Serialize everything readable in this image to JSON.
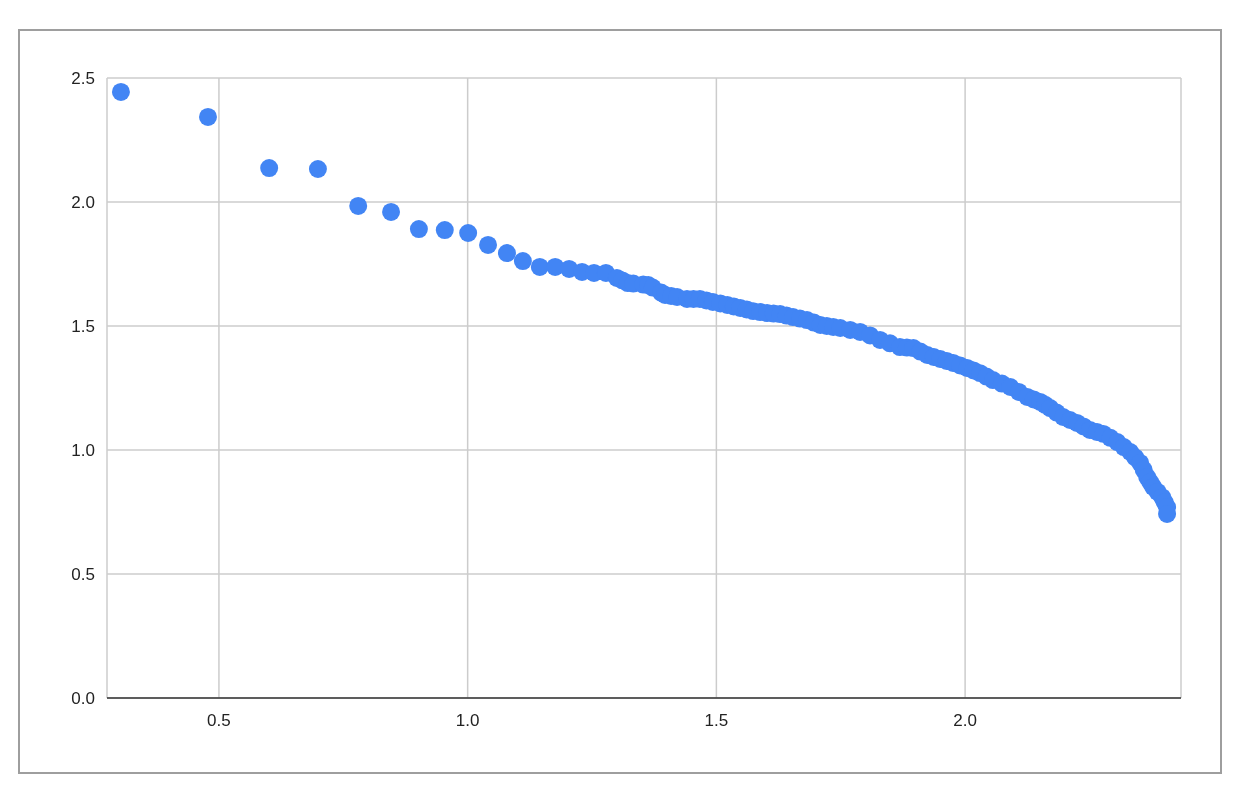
{
  "chart_data": {
    "type": "scatter",
    "color": "#4285f4",
    "marker": "circle",
    "grid": true,
    "x": [
      0.303,
      0.478,
      0.601,
      0.699,
      0.78,
      0.846,
      0.902,
      0.954,
      1.001,
      1.041,
      1.079,
      1.111,
      1.145,
      1.176,
      1.204,
      1.23,
      1.254,
      1.278,
      1.3,
      1.311,
      1.322,
      1.333,
      1.353,
      1.363,
      1.372,
      1.389,
      1.397,
      1.409,
      1.421,
      1.441,
      1.454,
      1.467,
      1.48,
      1.493,
      1.508,
      1.522,
      1.535,
      1.548,
      1.561,
      1.574,
      1.588,
      1.602,
      1.615,
      1.628,
      1.641,
      1.654,
      1.668,
      1.682,
      1.696,
      1.709,
      1.722,
      1.735,
      1.749,
      1.769,
      1.789,
      1.809,
      1.829,
      1.849,
      1.869,
      1.883,
      1.896,
      1.91,
      1.924,
      1.937,
      1.95,
      1.963,
      1.976,
      1.99,
      2.004,
      2.017,
      2.03,
      2.043,
      2.056,
      2.074,
      2.091,
      2.108,
      2.125,
      2.138,
      2.151,
      2.161,
      2.171,
      2.184,
      2.197,
      2.211,
      2.225,
      2.238,
      2.251,
      2.265,
      2.278,
      2.292,
      2.306,
      2.319,
      2.332,
      2.342,
      2.352,
      2.359,
      2.366,
      2.372,
      2.378,
      2.387,
      2.396,
      2.401,
      2.406,
      2.406
    ],
    "values": [
      2.444,
      2.343,
      2.137,
      2.133,
      1.984,
      1.96,
      1.891,
      1.887,
      1.875,
      1.827,
      1.794,
      1.762,
      1.738,
      1.738,
      1.73,
      1.718,
      1.714,
      1.714,
      1.694,
      1.684,
      1.673,
      1.671,
      1.667,
      1.665,
      1.655,
      1.635,
      1.625,
      1.621,
      1.617,
      1.609,
      1.609,
      1.609,
      1.603,
      1.597,
      1.591,
      1.585,
      1.579,
      1.573,
      1.567,
      1.56,
      1.556,
      1.552,
      1.55,
      1.548,
      1.542,
      1.536,
      1.53,
      1.524,
      1.514,
      1.504,
      1.5,
      1.496,
      1.492,
      1.484,
      1.476,
      1.462,
      1.444,
      1.43,
      1.415,
      1.413,
      1.411,
      1.397,
      1.383,
      1.375,
      1.367,
      1.359,
      1.351,
      1.341,
      1.331,
      1.321,
      1.31,
      1.296,
      1.282,
      1.268,
      1.254,
      1.234,
      1.214,
      1.204,
      1.194,
      1.182,
      1.169,
      1.151,
      1.133,
      1.121,
      1.109,
      1.095,
      1.081,
      1.073,
      1.065,
      1.049,
      1.032,
      1.012,
      0.992,
      0.97,
      0.948,
      0.92,
      0.891,
      0.871,
      0.851,
      0.831,
      0.81,
      0.79,
      0.77,
      0.742
    ],
    "xlim": [
      0.275,
      2.434
    ],
    "ylim": [
      0,
      2.5
    ],
    "xticks": [
      0.5,
      {
        "value": 1,
        "label": "1.0"
      },
      1.5,
      {
        "value": 2,
        "label": "2.0"
      }
    ],
    "yticks": [
      {
        "value": 0,
        "label": "0.0"
      },
      0.5,
      {
        "value": 1,
        "label": "1.0"
      },
      1.5,
      {
        "value": 2,
        "label": "2.0"
      },
      2.5
    ]
  }
}
